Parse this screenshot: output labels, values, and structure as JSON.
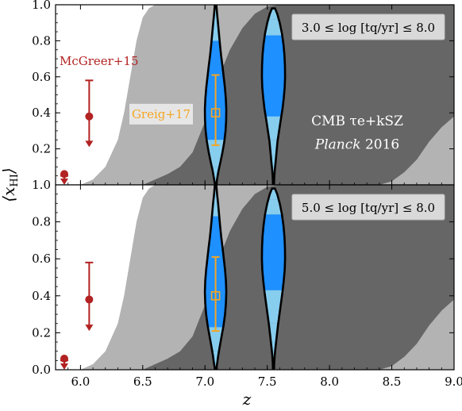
{
  "chart_data": [
    {
      "type": "area",
      "panel": "top",
      "xlim": [
        5.8,
        9.0
      ],
      "ylim": [
        0.0,
        1.0
      ],
      "xticks": [
        6.0,
        6.5,
        7.0,
        7.5,
        8.0,
        8.5,
        9.0
      ],
      "xtick_labels": [
        "6.0",
        "6.5",
        "7.0",
        "7.5",
        "8.0",
        "8.5",
        "9.0"
      ],
      "yticks": [
        0.0,
        0.2,
        0.4,
        0.6,
        0.8,
        1.0
      ],
      "ytick_labels": [
        "0.0",
        "0.2",
        "0.4",
        "0.6",
        "0.8",
        "1.0"
      ],
      "legend_box": "3.0 ≤ log [tq/yr] ≤ 8.0",
      "cmb_label_line1": "CMB τe+kSZ",
      "cmb_label_line2_italic": "Planck",
      "cmb_label_line2_rest": " 2016",
      "cmb_band_outer": {
        "z": [
          5.8,
          6.0,
          6.1,
          6.2,
          6.3,
          6.35,
          6.4,
          6.45,
          6.5,
          6.55,
          6.6,
          6.7,
          9.0
        ],
        "xHI": [
          0.0,
          0.0,
          0.03,
          0.1,
          0.25,
          0.4,
          0.6,
          0.8,
          0.93,
          0.98,
          1.0,
          1.0,
          1.0
        ]
      },
      "cmb_band_inner": {
        "z": [
          6.3,
          6.5,
          6.6,
          6.7,
          6.8,
          6.9,
          7.0,
          7.1,
          7.2,
          7.3,
          7.4,
          7.5,
          7.6,
          9.0
        ],
        "xHI": [
          0.0,
          0.0,
          0.03,
          0.06,
          0.1,
          0.18,
          0.35,
          0.58,
          0.75,
          0.87,
          0.95,
          0.99,
          1.0,
          1.0
        ]
      },
      "cmb_band_right_edge": {
        "z": [
          8.4,
          8.5,
          8.6,
          8.7,
          8.8,
          8.9,
          9.0
        ],
        "xHI": [
          0.0,
          0.02,
          0.07,
          0.14,
          0.24,
          0.32,
          0.38
        ]
      },
      "violins": [
        {
          "z": 7.085,
          "y": [
            0.0,
            0.04,
            0.08,
            0.12,
            0.18,
            0.24,
            0.3,
            0.36,
            0.42,
            0.48,
            0.54,
            0.6,
            0.66,
            0.72,
            0.78,
            0.84,
            0.9,
            0.95,
            1.0
          ],
          "half_width_z": [
            0.005,
            0.014,
            0.024,
            0.037,
            0.055,
            0.07,
            0.08,
            0.085,
            0.086,
            0.082,
            0.075,
            0.065,
            0.055,
            0.044,
            0.035,
            0.027,
            0.019,
            0.012,
            0.006
          ],
          "inner_range": [
            0.25,
            0.8
          ],
          "mid_range": [
            0.1,
            0.92
          ]
        },
        {
          "z": 7.55,
          "y": [
            0.0,
            0.04,
            0.08,
            0.12,
            0.18,
            0.24,
            0.3,
            0.36,
            0.42,
            0.48,
            0.54,
            0.6,
            0.66,
            0.72,
            0.78,
            0.84,
            0.9,
            0.95,
            0.98
          ],
          "half_width_z": [
            0.004,
            0.006,
            0.01,
            0.016,
            0.024,
            0.032,
            0.045,
            0.058,
            0.072,
            0.082,
            0.09,
            0.093,
            0.092,
            0.088,
            0.08,
            0.068,
            0.05,
            0.03,
            0.012
          ],
          "inner_range": [
            0.38,
            0.83
          ],
          "mid_range": [
            0.25,
            0.92
          ]
        }
      ],
      "greig17": {
        "label": "Greig+17",
        "z": 7.085,
        "xHI": 0.4,
        "lower": 0.22,
        "upper": 0.61
      },
      "mcgreer15": {
        "label": "McGreer+15",
        "points": [
          {
            "z": 5.87,
            "xHI": 0.06,
            "upper_err": 0.05,
            "arrow_to": 0.0
          },
          {
            "z": 6.07,
            "xHI": 0.38,
            "upper_err": 0.58,
            "arrow_to": 0.21
          }
        ]
      }
    },
    {
      "type": "area",
      "panel": "bottom",
      "xlim": [
        5.8,
        9.0
      ],
      "ylim": [
        0.0,
        1.0
      ],
      "xticks": [
        6.0,
        6.5,
        7.0,
        7.5,
        8.0,
        8.5,
        9.0
      ],
      "xtick_labels": [
        "6.0",
        "6.5",
        "7.0",
        "7.5",
        "8.0",
        "8.5",
        "9.0"
      ],
      "yticks": [
        0.0,
        0.2,
        0.4,
        0.6,
        0.8,
        1.0
      ],
      "ytick_labels": [
        "0.0",
        "0.2",
        "0.4",
        "0.6",
        "0.8",
        "1.0"
      ],
      "legend_box": "5.0 ≤ log [tq/yr] ≤ 8.0",
      "violins": [
        {
          "z": 7.085,
          "y": [
            0.0,
            0.04,
            0.08,
            0.12,
            0.18,
            0.24,
            0.3,
            0.36,
            0.42,
            0.48,
            0.54,
            0.6,
            0.66,
            0.72,
            0.78,
            0.84,
            0.9,
            0.95,
            1.0
          ],
          "half_width_z": [
            0.005,
            0.014,
            0.022,
            0.032,
            0.048,
            0.064,
            0.076,
            0.083,
            0.086,
            0.083,
            0.076,
            0.066,
            0.056,
            0.045,
            0.036,
            0.028,
            0.02,
            0.012,
            0.006
          ],
          "inner_range": [
            0.23,
            0.83
          ],
          "mid_range": [
            0.1,
            0.93
          ]
        },
        {
          "z": 7.55,
          "y": [
            0.0,
            0.04,
            0.08,
            0.12,
            0.18,
            0.24,
            0.3,
            0.36,
            0.42,
            0.48,
            0.54,
            0.6,
            0.66,
            0.72,
            0.78,
            0.84,
            0.9,
            0.95,
            0.98
          ],
          "half_width_z": [
            0.004,
            0.006,
            0.01,
            0.016,
            0.026,
            0.036,
            0.048,
            0.06,
            0.072,
            0.082,
            0.09,
            0.093,
            0.092,
            0.088,
            0.08,
            0.068,
            0.05,
            0.03,
            0.012
          ],
          "inner_range": [
            0.43,
            0.84
          ],
          "mid_range": [
            0.25,
            0.92
          ]
        }
      ],
      "greig17": {
        "z": 7.085,
        "xHI": 0.4,
        "lower": 0.21,
        "upper": 0.61
      },
      "mcgreer15": {
        "points": [
          {
            "z": 5.87,
            "xHI": 0.06,
            "upper_err": 0.05,
            "arrow_to": 0.0
          },
          {
            "z": 6.07,
            "xHI": 0.38,
            "upper_err": 0.58,
            "arrow_to": 0.21
          }
        ]
      }
    }
  ],
  "ylabel": "⟨xHI⟩",
  "xlabel": "z",
  "colors": {
    "band_light": "#b3b3b3",
    "band_dark": "#666666",
    "violin_outer": "#87cdee",
    "violin_inner": "#1e90ff",
    "greig": "#f5a623",
    "mcgreer": "#b22222",
    "legend_box_fill": "#d9d9d9"
  }
}
